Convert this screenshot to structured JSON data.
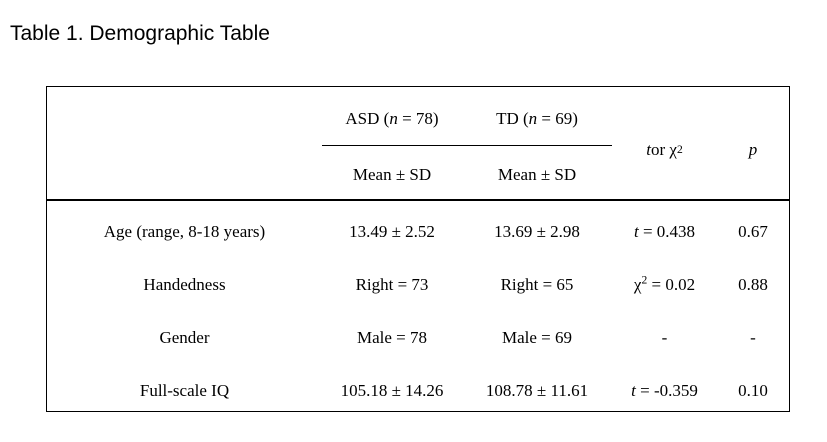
{
  "page": {
    "caption": "Table 1. Demographic Table"
  },
  "table": {
    "header": {
      "group_columns": [
        "ASD (*n* = 78)",
        "TD (*n* = 69)"
      ],
      "sub_columns": [
        "Mean ± SD",
        "Mean ± SD"
      ],
      "stat_column": "*t* or χ^2^",
      "p_column": "*p*"
    },
    "rows": [
      {
        "label": "Age (range, 8-18 years)",
        "asd": "13.49 ± 2.52",
        "td": "13.69 ± 2.98",
        "stat": "*t* = 0.438",
        "p": "0.67"
      },
      {
        "label": "Handedness",
        "asd": "Right = 73",
        "td": "Right = 65",
        "stat": "χ^2^ = 0.02",
        "p": "0.88"
      },
      {
        "label": "Gender",
        "asd": "Male = 78",
        "td": "Male = 69",
        "stat": "-",
        "p": "-"
      },
      {
        "label": "Full-scale IQ",
        "asd": "105.18 ± 14.26",
        "td": "108.78 ± 11.61",
        "stat": "*t* = -0.359",
        "p": "0.10"
      }
    ],
    "colors": {
      "text": "#000000",
      "border": "#000000",
      "background": "#ffffff"
    }
  }
}
